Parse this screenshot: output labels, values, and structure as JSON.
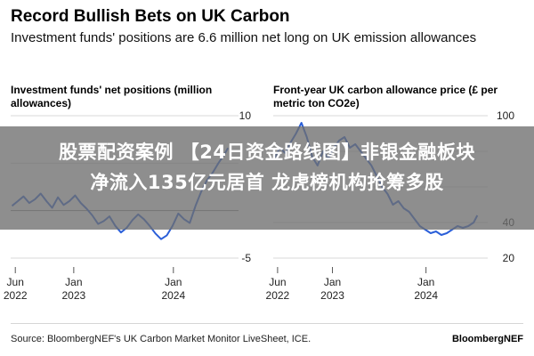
{
  "header": {
    "title": "Record Bullish Bets on UK Carbon",
    "subtitle": "Investment funds' positions are 6.6 million net long on UK emission allowances"
  },
  "overlay": {
    "line1": "股票配资案例 【24日资金路线图】非银金融板块",
    "line2": "净流入135亿元居首 龙虎榜机构抢筹多股"
  },
  "footer": {
    "source": "Source: BloombergNEF's UK Carbon Market Monitor LiveSheet, ICE.",
    "brand": "BloombergNEF"
  },
  "colors": {
    "line": "#2b5fd8",
    "grid": "#d9d9d9",
    "zero": "#888888",
    "overlay": "#6e6e6e"
  },
  "chart_data": [
    {
      "type": "line",
      "title": "Investment funds' net positions (million allowances)",
      "ylim": [
        -5,
        10
      ],
      "yticks": [
        10,
        5,
        0,
        -5
      ],
      "yticklabels": [
        "10",
        "",
        "",
        "-5"
      ],
      "xticks": [
        "2022-06",
        "2023-01",
        "2024-01"
      ],
      "xticklabels": [
        "Jun\n2022",
        "Jan\n2023",
        "Jan\n2024"
      ],
      "xrange": [
        "2022-05-15",
        "2024-07-25"
      ],
      "series": [
        {
          "x": [
            "2022-05-20",
            "2022-06-10",
            "2022-07-01",
            "2022-07-22",
            "2022-08-12",
            "2022-09-02",
            "2022-09-23",
            "2022-10-14",
            "2022-11-04",
            "2022-11-25",
            "2022-12-16",
            "2023-01-06",
            "2023-01-27",
            "2023-02-17",
            "2023-03-10",
            "2023-03-31",
            "2023-04-21",
            "2023-05-12",
            "2023-06-02",
            "2023-06-23",
            "2023-07-14",
            "2023-08-04",
            "2023-08-25",
            "2023-09-15",
            "2023-10-06",
            "2023-10-27",
            "2023-11-17",
            "2023-12-08",
            "2023-12-29",
            "2024-01-19",
            "2024-02-09",
            "2024-03-01",
            "2024-03-22",
            "2024-04-12",
            "2024-05-03",
            "2024-05-24",
            "2024-06-14",
            "2024-07-05",
            "2024-07-19"
          ],
          "values": [
            0.5,
            1.0,
            1.5,
            0.8,
            1.2,
            1.8,
            1.0,
            0.3,
            1.4,
            0.6,
            1.0,
            1.6,
            0.8,
            0.2,
            -0.5,
            -1.4,
            -1.1,
            -0.6,
            -1.6,
            -2.3,
            -1.8,
            -1.0,
            -0.4,
            -0.9,
            -1.6,
            -2.4,
            -3.0,
            -2.6,
            -1.6,
            -0.3,
            -0.9,
            -1.3,
            0.5,
            2.0,
            3.2,
            4.0,
            5.0,
            5.9,
            6.6
          ]
        }
      ]
    },
    {
      "type": "line",
      "title": "Front-year UK carbon allowance price (£ per metric ton CO2e)",
      "ylim": [
        20,
        100
      ],
      "yticks": [
        100,
        80,
        60,
        40,
        20
      ],
      "yticklabels": [
        "100",
        "",
        "",
        "40",
        "20"
      ],
      "xticks": [
        "2022-06",
        "2023-01",
        "2024-01"
      ],
      "xticklabels": [
        "Jun\n2022",
        "Jan\n2023",
        "Jan\n2024"
      ],
      "xrange": [
        "2022-05-15",
        "2024-07-25"
      ],
      "series": [
        {
          "x": [
            "2022-05-20",
            "2022-06-10",
            "2022-07-01",
            "2022-07-22",
            "2022-08-12",
            "2022-09-02",
            "2022-09-23",
            "2022-10-14",
            "2022-11-04",
            "2022-11-25",
            "2022-12-16",
            "2023-01-06",
            "2023-01-27",
            "2023-02-17",
            "2023-03-10",
            "2023-03-31",
            "2023-04-21",
            "2023-05-12",
            "2023-06-02",
            "2023-06-23",
            "2023-07-14",
            "2023-08-04",
            "2023-08-25",
            "2023-09-15",
            "2023-10-06",
            "2023-10-27",
            "2023-11-17",
            "2023-12-08",
            "2023-12-29",
            "2024-01-19",
            "2024-02-09",
            "2024-03-01",
            "2024-03-22",
            "2024-04-12",
            "2024-05-03",
            "2024-05-24",
            "2024-06-14",
            "2024-07-05",
            "2024-07-19"
          ],
          "values": [
            76,
            82,
            79,
            85,
            90,
            96,
            88,
            77,
            72,
            80,
            76,
            82,
            86,
            88,
            82,
            84,
            80,
            76,
            72,
            66,
            60,
            56,
            50,
            52,
            48,
            46,
            42,
            38,
            36,
            34,
            35,
            33,
            34,
            36,
            38,
            37,
            38,
            40,
            44
          ]
        }
      ]
    }
  ]
}
